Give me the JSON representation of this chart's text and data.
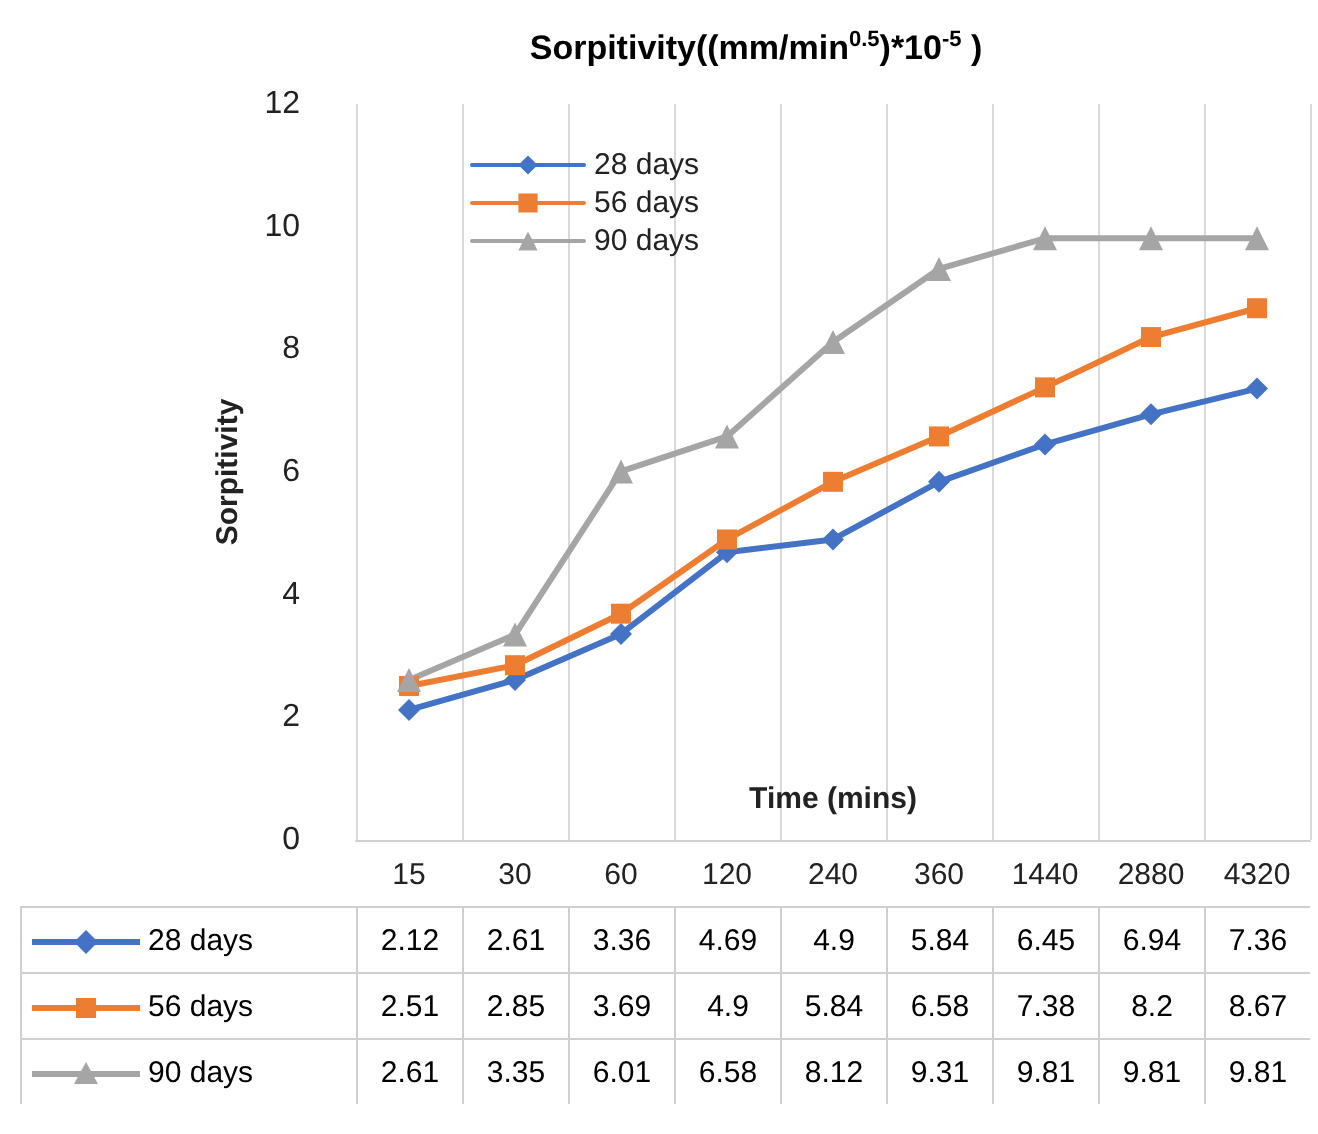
{
  "chart_data": {
    "type": "line",
    "title": "Sorpitivity((mm/min$^{0.5}$)*10$^{-5}$ )",
    "xlabel": "Time (mins)",
    "ylabel": "Sorpitivity",
    "categories": [
      "15",
      "30",
      "60",
      "120",
      "240",
      "360",
      "1440",
      "2880",
      "4320"
    ],
    "series": [
      {
        "name": "28 days",
        "color": "#4472c4",
        "marker": "diamond",
        "values": [
          2.12,
          2.61,
          3.36,
          4.69,
          4.9,
          5.84,
          6.45,
          6.94,
          7.36
        ]
      },
      {
        "name": "56 days",
        "color": "#ed7d31",
        "marker": "square",
        "values": [
          2.51,
          2.85,
          3.69,
          4.9,
          5.84,
          6.58,
          7.38,
          8.2,
          8.67
        ]
      },
      {
        "name": "90 days",
        "color": "#a5a5a5",
        "marker": "triangle",
        "values": [
          2.61,
          3.35,
          6.01,
          6.58,
          8.12,
          9.31,
          9.81,
          9.81,
          9.81
        ]
      }
    ],
    "ylim": [
      0,
      12
    ],
    "yticks": [
      0,
      2,
      4,
      6,
      8,
      10,
      12
    ],
    "grid": "x",
    "legend": "top left",
    "data_labels": true,
    "line_style": "solid"
  }
}
